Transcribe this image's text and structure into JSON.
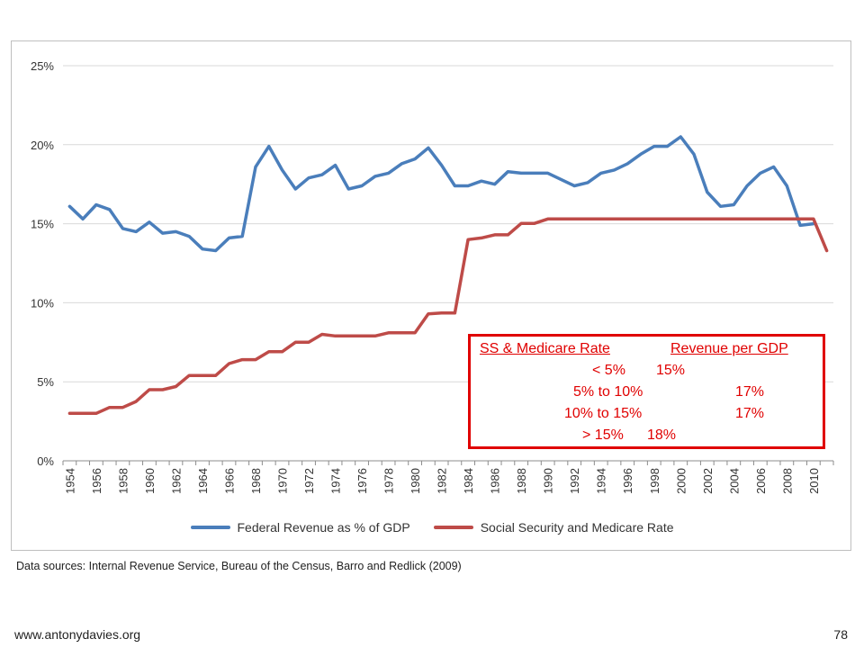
{
  "page": {
    "website": "www.antonydavies.org",
    "page_number": "78",
    "sources": "Data sources: Internal Revenue Service, Bureau of the Census, Barro and Redlick (2009)"
  },
  "rate_table": {
    "header_left": "SS & Medicare Rate",
    "header_right": "Revenue per GDP",
    "rows": [
      {
        "rate": "< 5%",
        "revenue": "15%"
      },
      {
        "rate": "5% to 10%",
        "revenue": "17%"
      },
      {
        "rate": "10% to 15%",
        "revenue": "17%"
      },
      {
        "rate": "> 15%",
        "revenue": "18%"
      }
    ]
  },
  "chart_data": {
    "type": "line",
    "title": "",
    "xlabel": "",
    "ylabel": "",
    "ylim": [
      0,
      25
    ],
    "yticks": [
      "0%",
      "5%",
      "10%",
      "15%",
      "20%",
      "25%"
    ],
    "xlim": [
      1954,
      2011
    ],
    "xticks": [
      "1954",
      "1956",
      "1958",
      "1960",
      "1962",
      "1964",
      "1966",
      "1968",
      "1970",
      "1972",
      "1974",
      "1976",
      "1978",
      "1980",
      "1982",
      "1984",
      "1986",
      "1988",
      "1990",
      "1992",
      "1994",
      "1996",
      "1998",
      "2000",
      "2002",
      "2004",
      "2006",
      "2008",
      "2010"
    ],
    "grid": true,
    "legend_position": "bottom",
    "x": [
      1954,
      1955,
      1956,
      1957,
      1958,
      1959,
      1960,
      1961,
      1962,
      1963,
      1964,
      1965,
      1966,
      1967,
      1968,
      1969,
      1970,
      1971,
      1972,
      1973,
      1974,
      1975,
      1976,
      1977,
      1978,
      1979,
      1980,
      1981,
      1982,
      1983,
      1984,
      1985,
      1986,
      1987,
      1988,
      1989,
      1990,
      1991,
      1992,
      1993,
      1994,
      1995,
      1996,
      1997,
      1998,
      1999,
      2000,
      2001,
      2002,
      2003,
      2004,
      2005,
      2006,
      2007,
      2008,
      2009,
      2010,
      2011
    ],
    "series": [
      {
        "name": "Federal Revenue as % of GDP",
        "color": "#4a7ebb",
        "values": [
          16.1,
          15.3,
          16.2,
          15.9,
          14.7,
          14.5,
          15.1,
          14.4,
          14.5,
          14.2,
          13.4,
          13.3,
          14.1,
          14.2,
          18.6,
          19.9,
          18.4,
          17.2,
          17.9,
          18.1,
          18.7,
          17.2,
          17.4,
          18.0,
          18.2,
          18.8,
          19.1,
          19.8,
          18.7,
          17.4,
          17.4,
          17.7,
          17.5,
          18.3,
          18.2,
          18.2,
          18.2,
          17.8,
          17.4,
          17.6,
          18.2,
          18.4,
          18.8,
          19.4,
          19.9,
          19.9,
          20.5,
          19.4,
          17.0,
          16.1,
          16.2,
          17.4,
          18.2,
          18.6,
          17.4,
          14.9,
          15.0,
          null
        ]
      },
      {
        "name": "Social Security and Medicare Rate",
        "color": "#be4b48",
        "values": [
          3.0,
          3.0,
          3.0,
          3.375,
          3.375,
          3.75,
          4.5,
          4.5,
          4.7,
          5.4,
          5.4,
          5.4,
          6.15,
          6.4,
          6.4,
          6.9,
          6.9,
          7.5,
          7.5,
          8.0,
          7.9,
          7.9,
          7.9,
          7.9,
          8.1,
          8.1,
          8.1,
          9.3,
          9.35,
          9.35,
          14.0,
          14.1,
          14.3,
          14.3,
          15.02,
          15.02,
          15.3,
          15.3,
          15.3,
          15.3,
          15.3,
          15.3,
          15.3,
          15.3,
          15.3,
          15.3,
          15.3,
          15.3,
          15.3,
          15.3,
          15.3,
          15.3,
          15.3,
          15.3,
          15.3,
          15.3,
          15.3,
          13.3
        ]
      }
    ]
  }
}
